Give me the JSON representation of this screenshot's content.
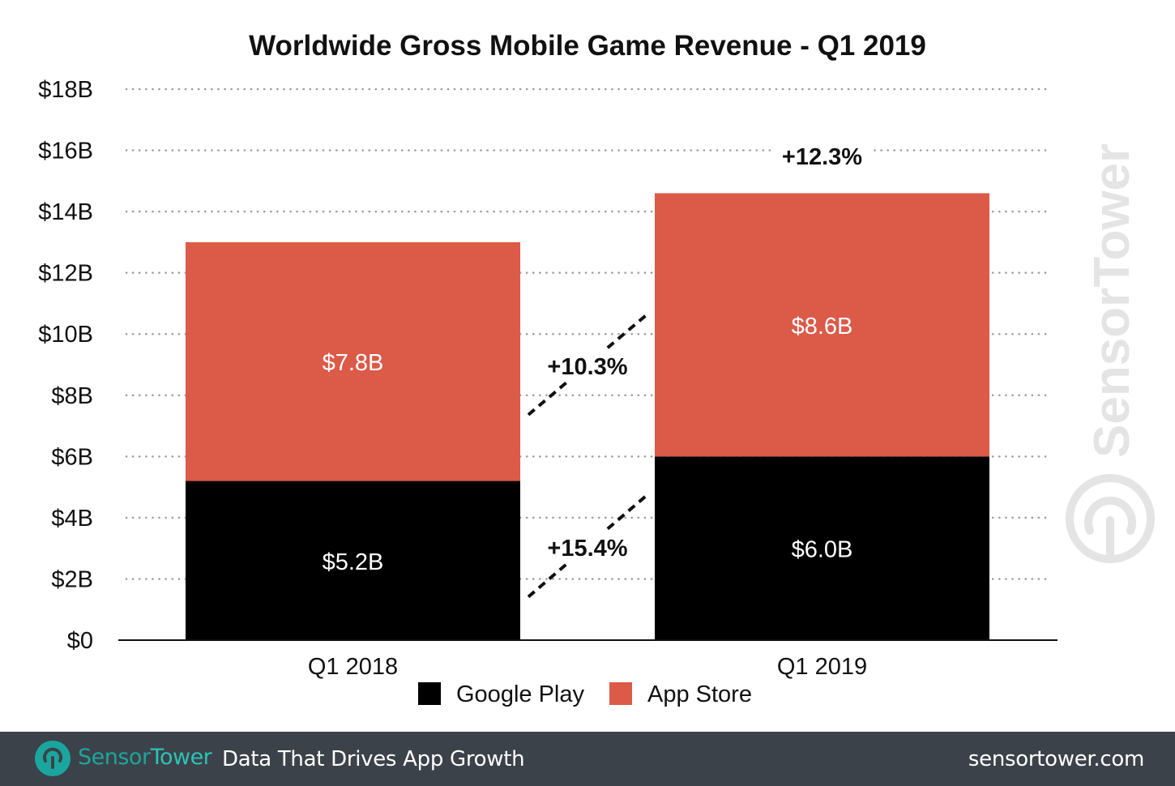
{
  "chart_data": {
    "type": "bar",
    "stacked": true,
    "title": "Worldwide Gross Mobile Game Revenue - Q1 2019",
    "categories": [
      "Q1 2018",
      "Q1 2019"
    ],
    "series": [
      {
        "name": "Google Play",
        "color": "#000000",
        "values": [
          5.2,
          6.0
        ],
        "labels": [
          "$5.2B",
          "$6.0B"
        ]
      },
      {
        "name": "App Store",
        "color": "#db5a48",
        "values": [
          7.8,
          8.6
        ],
        "labels": [
          "$7.8B",
          "$8.6B"
        ]
      }
    ],
    "ylim": [
      0,
      18
    ],
    "yticks": [
      0,
      2,
      4,
      6,
      8,
      10,
      12,
      14,
      16,
      18
    ],
    "ytick_labels": [
      "$0",
      "$2B",
      "$4B",
      "$6B",
      "$8B",
      "$10B",
      "$12B",
      "$14B",
      "$16B",
      "$18B"
    ],
    "grid": true,
    "legend_position": "bottom",
    "annotations": {
      "google_play_growth": "+15.4%",
      "app_store_growth": "+10.3%",
      "total_growth": "+12.3%"
    }
  },
  "watermark": "SensorTower",
  "footer": {
    "brand_sensor": "Sensor",
    "brand_tower": "Tower",
    "tagline": "Data That Drives App Growth",
    "url": "sensortower.com",
    "logo_icon": "sensortower-logo-icon"
  }
}
